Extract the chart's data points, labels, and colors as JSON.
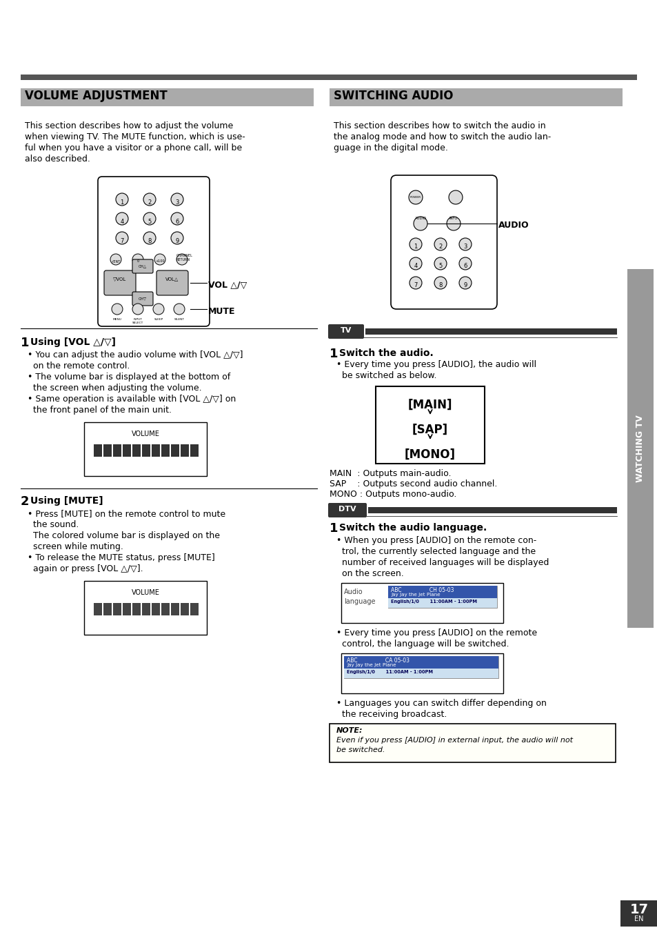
{
  "page_bg": "#ffffff",
  "top_bar_color": "#555555",
  "section_bar_color": "#aaaaaa",
  "title_left": "VOLUME ADJUSTMENT",
  "title_right": "SWITCHING AUDIO",
  "sidebar_label": "WATCHING TV",
  "page_number": "17",
  "body_text_left": [
    "This section describes how to adjust the volume",
    "when viewing TV. The MUTE function, which is use-",
    "ful when you have a visitor or a phone call, will be",
    "also described."
  ],
  "body_text_right": [
    "This section describes how to switch the audio in",
    "the analog mode and how to switch the audio lan-",
    "guage in the digital mode."
  ],
  "step1_bullets_left": [
    "• You can adjust the audio volume with [VOL △/▽]",
    "  on the remote control.",
    "• The volume bar is displayed at the bottom of",
    "  the screen when adjusting the volume.",
    "• Same operation is available with [VOL △/▽] on",
    "  the front panel of the main unit."
  ],
  "step2_bullets_left": [
    "• Press [MUTE] on the remote control to mute",
    "  the sound.",
    "  The colored volume bar is displayed on the",
    "  screen while muting.",
    "• To release the MUTE status, press [MUTE]",
    "  again or press [VOL △/▽]."
  ],
  "step1_right_bullets": [
    "• Every time you press [AUDIO], the audio will",
    "  be switched as below."
  ],
  "audio_cycle": [
    "[MAIN]",
    "[SAP]",
    "[MONO]"
  ],
  "audio_descriptions": [
    "MAIN  : Outputs main-audio.",
    "SAP    : Outputs second audio channel.",
    "MONO : Outputs mono-audio."
  ],
  "step2_right_bullets": [
    "• When you press [AUDIO] on the remote con-",
    "  trol, the currently selected language and the",
    "  number of received languages will be displayed",
    "  on the screen.",
    "• Every time you press [AUDIO] on the remote",
    "  control, the language will be switched.",
    "• Languages you can switch differ depending on",
    "  the receiving broadcast."
  ],
  "tv_label": "TV",
  "dtv_label": "DTV",
  "audio_label": "AUDIO",
  "vol_label": "VOL △/▽",
  "mute_label": "MUTE"
}
